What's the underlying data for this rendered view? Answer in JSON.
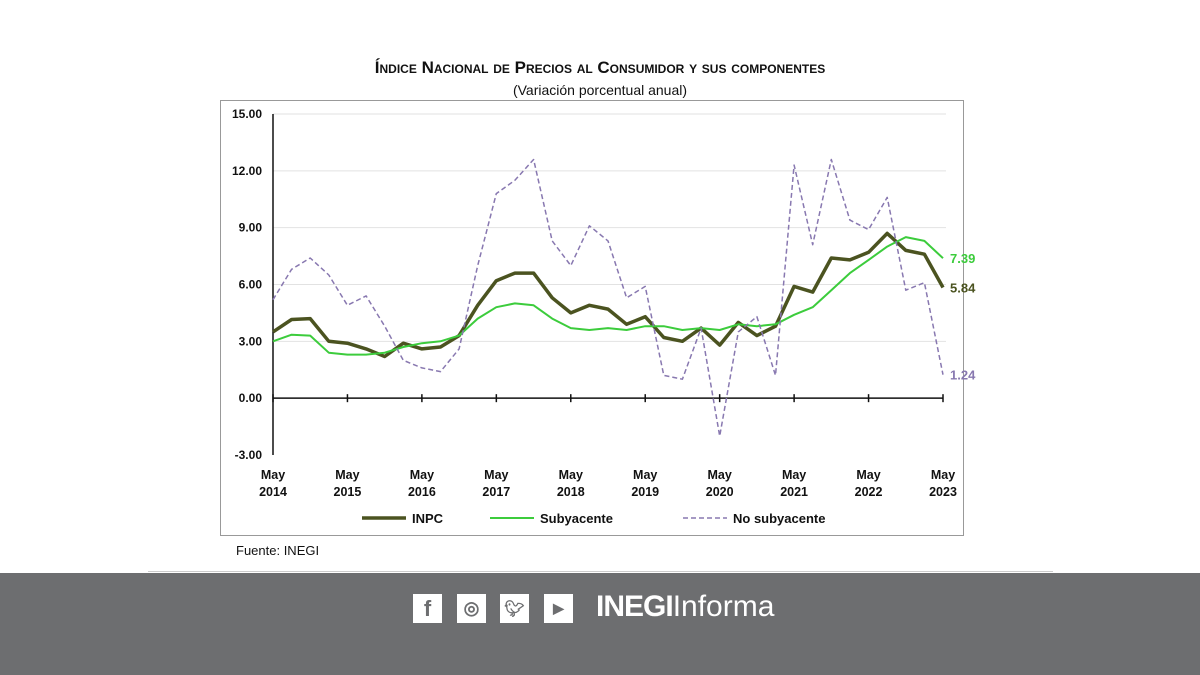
{
  "chart_data": {
    "type": "line",
    "title": "Índice Nacional de Precios al Consumidor y sus componentes",
    "subtitle": "(Variación porcentual anual)",
    "ylim": [
      -3,
      15
    ],
    "yticks": [
      "15.00",
      "12.00",
      "9.00",
      "6.00",
      "3.00",
      "0.00",
      "-3.00"
    ],
    "xtick_labels": [
      [
        "May",
        "2014"
      ],
      [
        "May",
        "2015"
      ],
      [
        "May",
        "2016"
      ],
      [
        "May",
        "2017"
      ],
      [
        "May",
        "2018"
      ],
      [
        "May",
        "2019"
      ],
      [
        "May",
        "2020"
      ],
      [
        "May",
        "2021"
      ],
      [
        "May",
        "2022"
      ],
      [
        "May",
        "2023"
      ]
    ],
    "x": [
      "2014-05",
      "2014-08",
      "2014-11",
      "2015-02",
      "2015-05",
      "2015-08",
      "2015-11",
      "2016-02",
      "2016-05",
      "2016-08",
      "2016-11",
      "2017-02",
      "2017-05",
      "2017-08",
      "2017-11",
      "2018-02",
      "2018-05",
      "2018-08",
      "2018-11",
      "2019-02",
      "2019-05",
      "2019-08",
      "2019-11",
      "2020-02",
      "2020-05",
      "2020-08",
      "2020-11",
      "2021-02",
      "2021-05",
      "2021-08",
      "2021-11",
      "2022-02",
      "2022-05",
      "2022-08",
      "2022-11",
      "2023-02",
      "2023-05"
    ],
    "grid": true,
    "legend": "bottom",
    "series": [
      {
        "name": "INPC",
        "color": "#4b5320",
        "style": "solid",
        "end_label": "5.84",
        "values": [
          3.5,
          4.15,
          4.2,
          3.0,
          2.9,
          2.6,
          2.2,
          2.9,
          2.6,
          2.7,
          3.3,
          4.9,
          6.2,
          6.6,
          6.6,
          5.3,
          4.5,
          4.9,
          4.7,
          3.9,
          4.3,
          3.2,
          3.0,
          3.7,
          2.8,
          4.0,
          3.3,
          3.8,
          5.9,
          5.6,
          7.4,
          7.3,
          7.7,
          8.7,
          7.8,
          7.6,
          5.84
        ]
      },
      {
        "name": "Subyacente",
        "color": "#3ccc3c",
        "style": "solid",
        "end_label": "7.39",
        "values": [
          3.0,
          3.35,
          3.3,
          2.4,
          2.3,
          2.3,
          2.4,
          2.7,
          2.9,
          3.0,
          3.3,
          4.2,
          4.8,
          5.0,
          4.9,
          4.2,
          3.7,
          3.6,
          3.7,
          3.6,
          3.8,
          3.8,
          3.6,
          3.7,
          3.6,
          3.9,
          3.8,
          3.9,
          4.4,
          4.8,
          5.7,
          6.6,
          7.3,
          8.0,
          8.5,
          8.3,
          7.39
        ]
      },
      {
        "name": "No subyacente",
        "color": "#8878b0",
        "style": "dashed",
        "end_label": "1.24",
        "values": [
          5.2,
          6.8,
          7.4,
          6.5,
          4.9,
          5.4,
          3.8,
          2.0,
          1.6,
          1.4,
          2.6,
          7.0,
          10.8,
          11.5,
          12.6,
          8.3,
          7.0,
          9.1,
          8.3,
          5.3,
          5.9,
          1.2,
          1.0,
          3.7,
          -2.0,
          3.5,
          4.3,
          1.2,
          12.3,
          8.1,
          12.6,
          9.4,
          8.9,
          10.6,
          5.7,
          6.1,
          1.24
        ]
      }
    ]
  },
  "source": "Fuente: INEGI",
  "footer": {
    "social_icons": [
      "facebook-icon",
      "instagram-icon",
      "twitter-icon",
      "youtube-icon"
    ],
    "brand_bold": "INEGI",
    "brand_light": "Informa",
    "background": "#6d6e70"
  }
}
